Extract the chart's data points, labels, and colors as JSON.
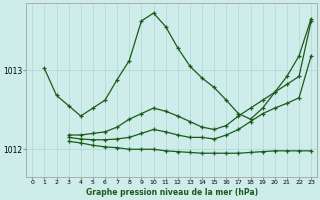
{
  "xlabel": "Graphe pression niveau de la mer (hPa)",
  "background_color": "#ceecea",
  "grid_color": "#aed8d4",
  "line_color": "#1a5c1a",
  "xlim": [
    -0.5,
    23.5
  ],
  "ylim": [
    1011.65,
    1013.85
  ],
  "yticks": [
    1012,
    1013
  ],
  "xticks": [
    0,
    1,
    2,
    3,
    4,
    5,
    6,
    7,
    8,
    9,
    10,
    11,
    12,
    13,
    14,
    15,
    16,
    17,
    18,
    19,
    20,
    21,
    22,
    23
  ],
  "lines": [
    {
      "x": [
        1,
        2,
        3,
        4,
        5,
        6,
        7,
        8,
        9,
        10,
        11,
        12,
        13,
        14,
        15,
        16,
        17,
        18,
        19,
        20,
        21,
        22,
        23
      ],
      "y": [
        1013.02,
        1012.68,
        1012.55,
        1012.42,
        1012.52,
        1012.62,
        1012.88,
        1013.12,
        1013.62,
        1013.72,
        1013.55,
        1013.28,
        1013.05,
        1012.9,
        1012.78,
        1012.62,
        1012.45,
        1012.38,
        1012.52,
        1012.72,
        1012.92,
        1013.18,
        1013.65
      ]
    },
    {
      "x": [
        3,
        4,
        5,
        6,
        7,
        8,
        9,
        10,
        11,
        12,
        13,
        14,
        15,
        16,
        17,
        18,
        19,
        20,
        21,
        22,
        23
      ],
      "y": [
        1012.18,
        1012.18,
        1012.2,
        1012.22,
        1012.28,
        1012.38,
        1012.45,
        1012.52,
        1012.48,
        1012.42,
        1012.35,
        1012.28,
        1012.25,
        1012.3,
        1012.42,
        1012.52,
        1012.62,
        1012.72,
        1012.82,
        1012.92,
        1013.62
      ]
    },
    {
      "x": [
        3,
        4,
        5,
        6,
        7,
        8,
        9,
        10,
        11,
        12,
        13,
        14,
        15,
        16,
        17,
        18,
        19,
        20,
        21,
        22,
        23
      ],
      "y": [
        1012.15,
        1012.13,
        1012.12,
        1012.12,
        1012.13,
        1012.15,
        1012.2,
        1012.25,
        1012.22,
        1012.18,
        1012.15,
        1012.15,
        1012.13,
        1012.18,
        1012.25,
        1012.35,
        1012.45,
        1012.52,
        1012.58,
        1012.65,
        1013.18
      ]
    },
    {
      "x": [
        3,
        4,
        5,
        6,
        7,
        8,
        9,
        10,
        11,
        12,
        13,
        14,
        15,
        16,
        17,
        18,
        19,
        20,
        21,
        22,
        23
      ],
      "y": [
        1012.1,
        1012.08,
        1012.05,
        1012.03,
        1012.02,
        1012.0,
        1012.0,
        1012.0,
        1011.98,
        1011.97,
        1011.96,
        1011.95,
        1011.95,
        1011.95,
        1011.95,
        1011.96,
        1011.97,
        1011.98,
        1011.98,
        1011.98,
        1011.98
      ]
    }
  ],
  "marker": "+",
  "markersize": 3.5,
  "linewidth": 0.9
}
